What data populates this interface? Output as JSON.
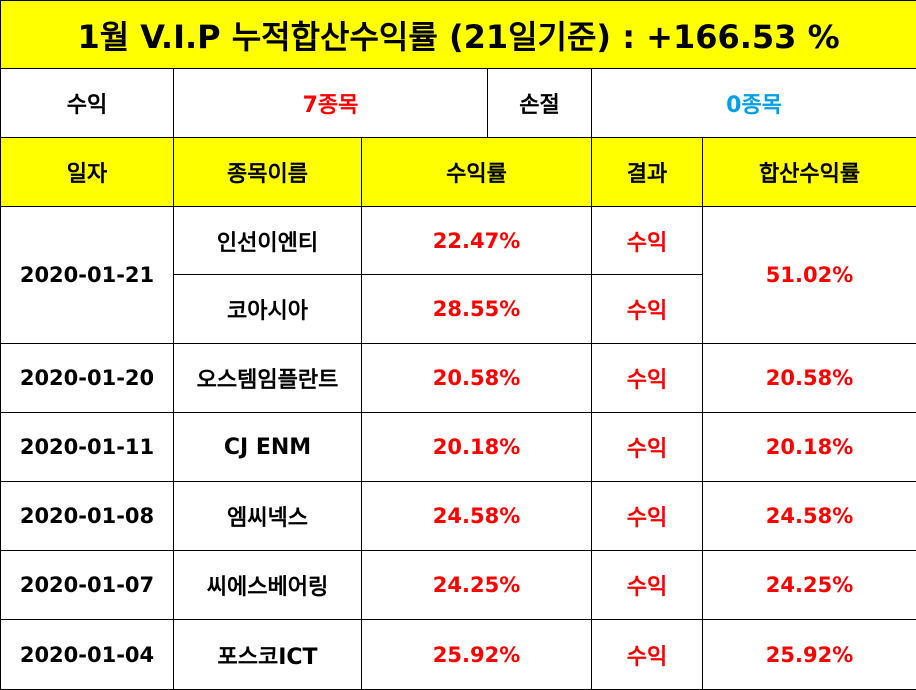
{
  "title": "1월 V.I.P 누적합산수익률 (21일기준) : +166.53 %",
  "summary": {
    "profit_label": "수익",
    "profit_value": "7종목",
    "loss_label": "손절",
    "loss_value": "0종목"
  },
  "headers": {
    "date": "일자",
    "name": "종목이름",
    "rate": "수익률",
    "result": "결과",
    "total": "합산수익률"
  },
  "rows": [
    {
      "date": "2020-01-21",
      "total": "51.02%",
      "items": [
        {
          "name": "인선이엔티",
          "rate": "22.47%",
          "result": "수익"
        },
        {
          "name": "코아시아",
          "rate": "28.55%",
          "result": "수익"
        }
      ]
    },
    {
      "date": "2020-01-20",
      "total": "20.58%",
      "items": [
        {
          "name": "오스템임플란트",
          "rate": "20.58%",
          "result": "수익"
        }
      ]
    },
    {
      "date": "2020-01-11",
      "total": "20.18%",
      "items": [
        {
          "name": "CJ ENM",
          "rate": "20.18%",
          "result": "수익"
        }
      ]
    },
    {
      "date": "2020-01-08",
      "total": "24.58%",
      "items": [
        {
          "name": "엠씨넥스",
          "rate": "24.58%",
          "result": "수익"
        }
      ]
    },
    {
      "date": "2020-01-07",
      "total": "24.25%",
      "items": [
        {
          "name": "씨에스베어링",
          "rate": "24.25%",
          "result": "수익"
        }
      ]
    },
    {
      "date": "2020-01-04",
      "total": "25.92%",
      "items": [
        {
          "name": "포스코ICT",
          "rate": "25.92%",
          "result": "수익"
        }
      ]
    }
  ],
  "colors": {
    "header_bg": "#ffff00",
    "profit_text": "#ff0000",
    "loss_text": "#00a0e8",
    "border": "#000000"
  }
}
